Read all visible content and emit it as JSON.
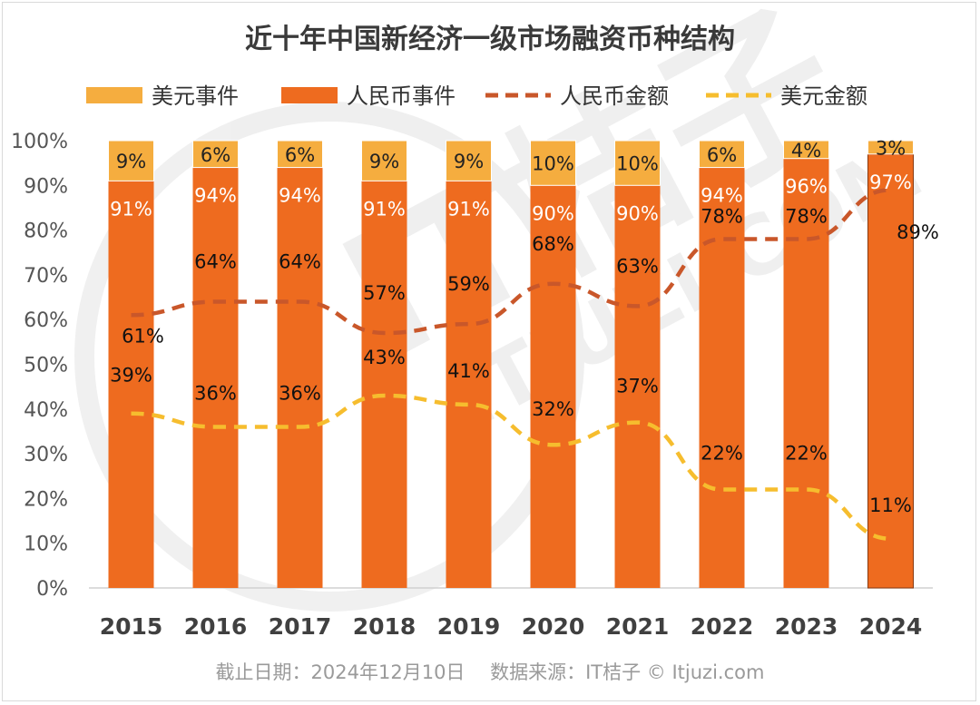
{
  "chart_data": {
    "type": "bar",
    "title": "近十年中国新经济一级市场融资币种结构",
    "categories": [
      "2015",
      "2016",
      "2017",
      "2018",
      "2019",
      "2020",
      "2021",
      "2022",
      "2023",
      "2024"
    ],
    "ylim": [
      0,
      100
    ],
    "y_ticks": [
      "0%",
      "10%",
      "20%",
      "30%",
      "40%",
      "50%",
      "60%",
      "70%",
      "80%",
      "90%",
      "100%"
    ],
    "stacked": true,
    "grid": false,
    "legend_position": "top",
    "series": [
      {
        "name": "人民币事件",
        "kind": "bar",
        "color": "#ee6b1f",
        "label_color": "#ffffff",
        "values": [
          91,
          94,
          94,
          91,
          91,
          90,
          90,
          94,
          96,
          97
        ],
        "labels": [
          "91%",
          "94%",
          "94%",
          "91%",
          "91%",
          "90%",
          "90%",
          "94%",
          "96%",
          "97%"
        ]
      },
      {
        "name": "美元事件",
        "kind": "bar",
        "color": "#f5ad3f",
        "label_color": "#222222",
        "values": [
          9,
          6,
          6,
          9,
          9,
          10,
          10,
          6,
          4,
          3
        ],
        "labels": [
          "9%",
          "6%",
          "6%",
          "9%",
          "9%",
          "10%",
          "10%",
          "6%",
          "4%",
          "3%"
        ]
      },
      {
        "name": "人民币金额",
        "kind": "dashed-line",
        "color": "#c9572a",
        "values": [
          61,
          64,
          64,
          57,
          59,
          68,
          63,
          78,
          78,
          89
        ],
        "labels": [
          "61%",
          "64%",
          "64%",
          "57%",
          "59%",
          "68%",
          "63%",
          "78%",
          "78%",
          "89%"
        ]
      },
      {
        "name": "美元金额",
        "kind": "dashed-line",
        "color": "#f6bd2e",
        "values": [
          39,
          36,
          36,
          43,
          41,
          32,
          37,
          22,
          22,
          11
        ],
        "labels": [
          "39%",
          "36%",
          "36%",
          "43%",
          "41%",
          "32%",
          "37%",
          "22%",
          "22%",
          "11%"
        ]
      }
    ],
    "legend_order": [
      "美元事件",
      "人民币事件",
      "人民币金额",
      "美元金额"
    ],
    "footer": "截止日期：2024年12月10日　 数据来源：IT桔子 © Itjuzi.com",
    "watermark": "IT桔子 ITJUZI.COM"
  }
}
